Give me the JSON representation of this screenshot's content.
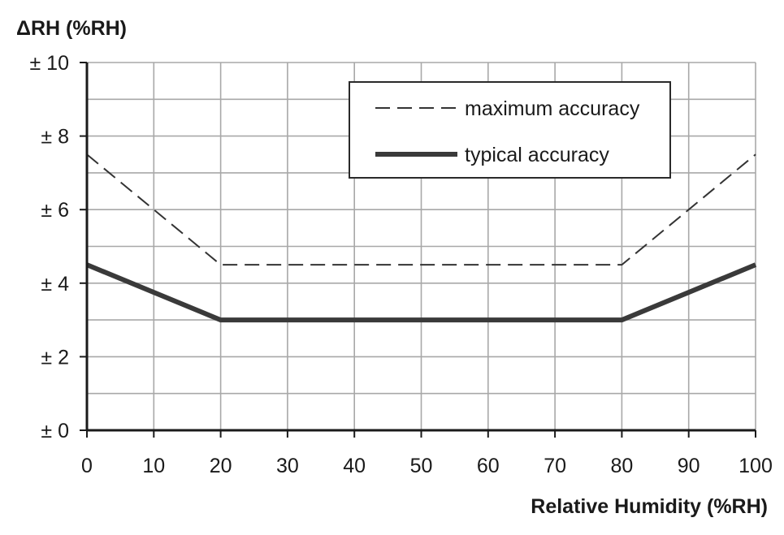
{
  "chart_data": {
    "type": "line",
    "ylabel": "ΔRH (%RH)",
    "xlabel": "Relative Humidity (%RH)",
    "xlim": [
      0,
      100
    ],
    "ylim": [
      0,
      10
    ],
    "x_ticks": [
      0,
      10,
      20,
      30,
      40,
      50,
      60,
      70,
      80,
      90,
      100
    ],
    "y_ticks": [
      0,
      2,
      4,
      6,
      8,
      10
    ],
    "x_tick_labels": [
      "0",
      "10",
      "20",
      "30",
      "40",
      "50",
      "60",
      "70",
      "80",
      "90",
      "100"
    ],
    "y_tick_labels": [
      "± 0",
      "± 2",
      "± 4",
      "± 6",
      "± 8",
      "± 10"
    ],
    "grid": true,
    "minor_y_grid_step": 1,
    "legend_position": "top-right",
    "series": [
      {
        "name": "maximum accuracy",
        "style": "dashed",
        "color": "#333333",
        "x": [
          0,
          20,
          80,
          100
        ],
        "y": [
          7.5,
          4.5,
          4.5,
          7.5
        ]
      },
      {
        "name": "typical accuracy",
        "style": "solid-thick",
        "color": "#3a3a3a",
        "x": [
          0,
          20,
          80,
          100
        ],
        "y": [
          4.5,
          3,
          3,
          4.5
        ]
      }
    ]
  }
}
